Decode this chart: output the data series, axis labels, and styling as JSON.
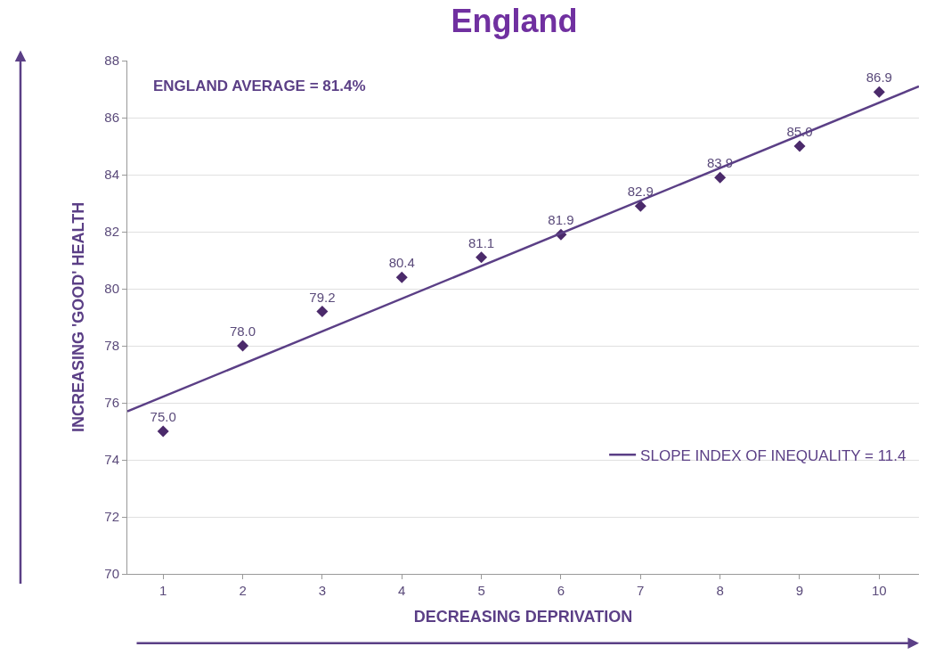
{
  "chart_data": {
    "type": "scatter",
    "title": "England",
    "xlabel": "DECREASING DEPRIVATION",
    "ylabel": "INCREASING 'GOOD' HEALTH",
    "x": [
      1,
      2,
      3,
      4,
      5,
      6,
      7,
      8,
      9,
      10
    ],
    "series": [
      {
        "color": "#4b2a6b",
        "marker": "diamond",
        "values": [
          75.0,
          78.0,
          79.2,
          80.4,
          81.1,
          81.9,
          82.9,
          83.9,
          85.0,
          86.9
        ],
        "value_labels": [
          "75.0",
          "78.0",
          "79.2",
          "80.4",
          "81.1",
          "81.9",
          "82.9",
          "83.9",
          "85.0",
          "86.9"
        ]
      },
      {
        "type": "line",
        "name": "SLOPE INDEX OF INEQUALITY = 11.4",
        "color": "#5b3f86",
        "x": [
          0.55,
          10.5
        ],
        "values": [
          75.7,
          87.1
        ]
      }
    ],
    "xlim": [
      0.55,
      10.5
    ],
    "xticks": [
      1,
      2,
      3,
      4,
      5,
      6,
      7,
      8,
      9,
      10
    ],
    "ylim": [
      70,
      88
    ],
    "yticks": [
      70,
      72,
      74,
      76,
      78,
      80,
      82,
      84,
      86,
      88
    ],
    "grid": "y",
    "legend": "bottom right",
    "annotations": [
      "ENGLAND AVERAGE = 81.4%"
    ]
  }
}
